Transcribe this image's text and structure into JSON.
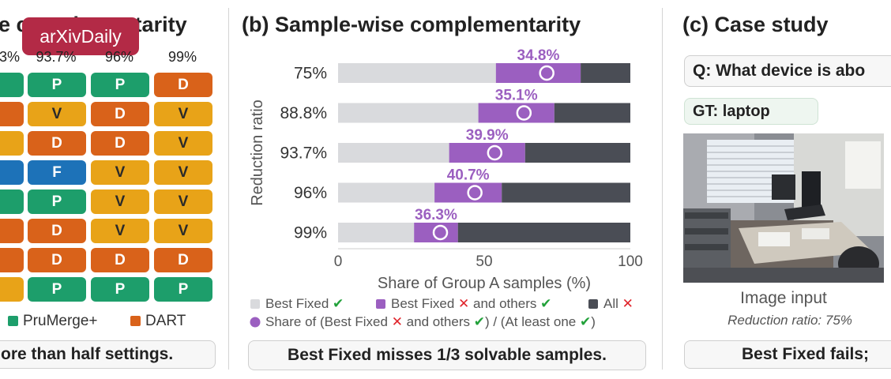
{
  "watermark": "arXivDaily",
  "panel_a": {
    "title": "e complementarity",
    "headers": [
      "3%",
      "93.7%",
      "96%",
      "99%"
    ],
    "grid": [
      [
        "",
        "P",
        "P",
        "D"
      ],
      [
        "",
        "V",
        "D",
        "V"
      ],
      [
        "",
        "D",
        "D",
        "V"
      ],
      [
        "",
        "F",
        "V",
        "V"
      ],
      [
        "",
        "P",
        "V",
        "V"
      ],
      [
        "",
        "D",
        "V",
        "V"
      ],
      [
        "",
        "D",
        "D",
        "D"
      ],
      [
        "",
        "P",
        "P",
        "P"
      ]
    ],
    "legend": [
      {
        "label": "PruMerge+",
        "color": "#1d9e6b"
      },
      {
        "label": "DART",
        "color": "#d9621a"
      }
    ],
    "footer": "ore than half settings."
  },
  "chart_data": {
    "type": "bar",
    "title": "(b) Sample-wise complementarity",
    "xlabel": "Share of Group A samples (%)",
    "ylabel": "Reduction ratio",
    "categories": [
      "75%",
      "88.8%",
      "93.7%",
      "96%",
      "99%"
    ],
    "xlim": [
      0,
      100
    ],
    "xticks": [
      "0",
      "50",
      "100"
    ],
    "series": [
      {
        "name": "Best Fixed ✔",
        "values": [
          54,
          48,
          38,
          33,
          26
        ],
        "color": "#d9dadd"
      },
      {
        "name": "Best Fixed ✕ and others ✔",
        "values": [
          29,
          26,
          26,
          23,
          15
        ],
        "color": "#9b5fc0"
      },
      {
        "name": "All ✕",
        "values": [
          17,
          26,
          36,
          44,
          59
        ],
        "color": "#4a4d55"
      }
    ],
    "share": {
      "name": "Share of (Best Fixed ✕ and others ✔) / (At least one ✔)",
      "values": [
        34.8,
        35.1,
        39.9,
        40.7,
        36.3
      ],
      "labels": [
        "34.8%",
        "35.1%",
        "39.9%",
        "40.7%",
        "36.3%"
      ]
    },
    "legend_rows": [
      [
        "Best Fixed ✔",
        "Best Fixed ✕ and others ✔",
        "All ✕"
      ],
      [
        "Share of (Best Fixed ✕ and others ✔) / (At least one ✔)"
      ]
    ],
    "footer": "Best Fixed misses 1/3 solvable samples."
  },
  "panel_c": {
    "title": "(c) Case study",
    "question": "Q: What device is abo",
    "gt": "GT: laptop",
    "image_caption": "Image input",
    "reduction_caption": "Reduction ratio: 75%",
    "footer": "Best Fixed fails;"
  },
  "colors": {
    "P": "#1d9e6b",
    "D": "#d9621a",
    "V": "#e8a318",
    "F": "#1d72b8",
    "purple": "#9b5fc0",
    "purple_text": "#9b5fc0",
    "dark": "#4a4d55",
    "light": "#d9dadd"
  }
}
